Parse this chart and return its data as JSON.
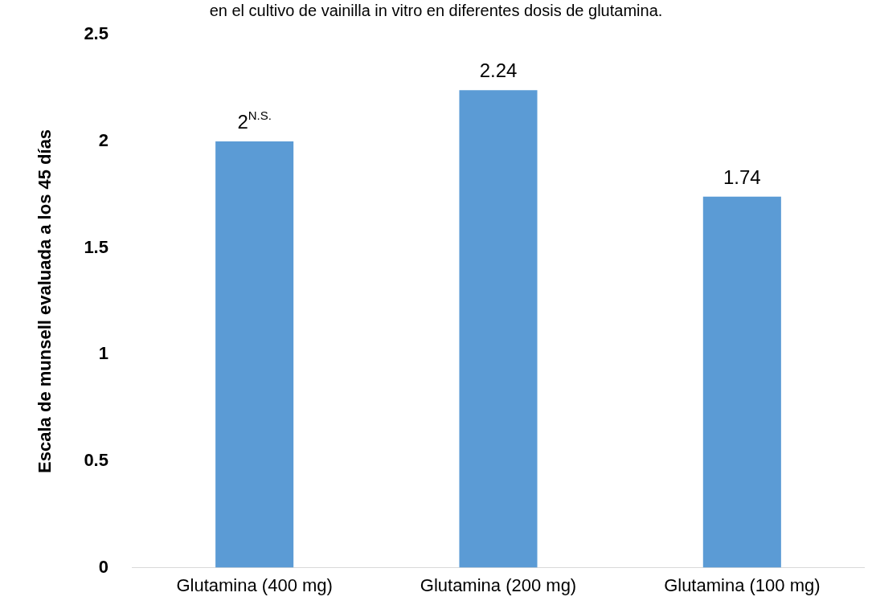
{
  "chart_data": {
    "type": "bar",
    "title": "en el cultivo de vainilla in vitro en diferentes dosis de glutamina.",
    "ylabel": "Escala de munsell evaluada a los 45 días",
    "categories": [
      "Glutamina (400 mg)",
      "Glutamina (200 mg)",
      "Glutamina (100 mg)"
    ],
    "values": [
      2,
      2.24,
      1.74
    ],
    "color": "#5b9bd5",
    "value_labels": [
      "2$^{N.S.}$",
      "2.24",
      "1.74"
    ],
    "ylim": [
      0,
      2.5
    ],
    "yticks": [
      0,
      0.5,
      1,
      1.5,
      2,
      2.5
    ],
    "grid": false,
    "legend": false
  }
}
